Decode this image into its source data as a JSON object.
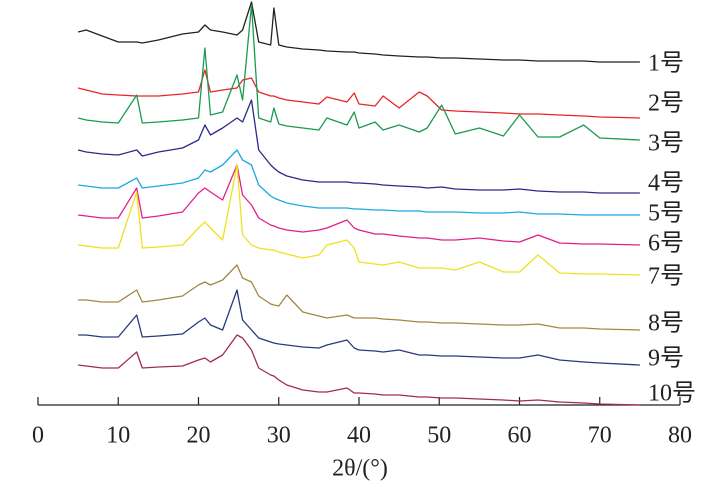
{
  "chart_data": {
    "type": "line",
    "x_label": "2θ/(°)",
    "xlim": [
      0,
      80
    ],
    "xticks": [
      0,
      10,
      20,
      30,
      40,
      50,
      60,
      70,
      80
    ],
    "ylim": [
      0,
      405
    ],
    "x": [
      5,
      6,
      7,
      8,
      10,
      12.3,
      13,
      15,
      18,
      20,
      20.8,
      21.5,
      23,
      24.8,
      25.5,
      26.6,
      27.5,
      29,
      29.4,
      30,
      31,
      33,
      35,
      36,
      38.5,
      39.4,
      40,
      42,
      43,
      45,
      47.5,
      48.5,
      50.3,
      52,
      55,
      58,
      60,
      62.3,
      65,
      68,
      70,
      75
    ],
    "series": [
      {
        "name": "1号",
        "color": "#222222",
        "values": [
          373,
          375,
          372,
          369,
          363,
          363,
          362,
          365,
          371,
          373,
          380,
          375,
          373,
          370,
          375,
          403,
          363,
          360,
          397,
          360,
          358,
          356,
          355,
          354,
          353,
          353,
          352,
          351,
          350,
          349,
          348,
          348,
          347,
          347,
          346,
          345,
          345,
          344,
          344,
          344,
          343,
          343
        ]
      },
      {
        "name": "2号",
        "color": "#e8242a",
        "values": [
          317,
          315,
          313,
          311,
          310,
          309,
          309,
          309,
          311,
          313,
          335,
          313,
          315,
          317,
          325,
          327,
          313,
          309,
          309,
          307,
          305,
          303,
          301,
          308,
          303,
          312,
          301,
          299,
          309,
          297,
          313,
          309,
          295,
          294,
          293,
          292,
          291,
          291,
          290,
          289,
          288,
          287
        ]
      },
      {
        "name": "3号",
        "color": "#1a9a50",
        "values": [
          287,
          285,
          284,
          283,
          282,
          310,
          282,
          283,
          285,
          287,
          357,
          290,
          293,
          330,
          305,
          400,
          287,
          283,
          297,
          281,
          279,
          277,
          275,
          287,
          280,
          293,
          277,
          283,
          275,
          280,
          273,
          277,
          300,
          271,
          277,
          269,
          290,
          268,
          268,
          280,
          267,
          265
        ]
      },
      {
        "name": "4号",
        "color": "#2a2a8a",
        "values": [
          255,
          253,
          252,
          251,
          250,
          255,
          249,
          253,
          257,
          265,
          280,
          270,
          277,
          287,
          283,
          305,
          255,
          240,
          237,
          233,
          229,
          225,
          223,
          223,
          223,
          222,
          222,
          221,
          220,
          219,
          218,
          217,
          218,
          216,
          215,
          215,
          216,
          214,
          213,
          213,
          212,
          212
        ]
      },
      {
        "name": "5号",
        "color": "#1fa8e0",
        "values": [
          220,
          219,
          218,
          217,
          217,
          227,
          217,
          219,
          222,
          227,
          235,
          233,
          240,
          255,
          245,
          240,
          220,
          209,
          207,
          205,
          202,
          199,
          197,
          197,
          197,
          196,
          196,
          195,
          195,
          194,
          194,
          193,
          193,
          193,
          192,
          192,
          193,
          191,
          191,
          190,
          190,
          190
        ]
      },
      {
        "name": "6号",
        "color": "#e0208a",
        "values": [
          190,
          189,
          188,
          187,
          187,
          217,
          187,
          189,
          193,
          212,
          217,
          213,
          205,
          240,
          210,
          200,
          187,
          180,
          179,
          177,
          175,
          173,
          175,
          177,
          185,
          177,
          175,
          171,
          171,
          169,
          167,
          167,
          165,
          165,
          167,
          164,
          163,
          170,
          162,
          161,
          161,
          160
        ]
      },
      {
        "name": "7号",
        "color": "#f0e020",
        "values": [
          160,
          159,
          158,
          157,
          157,
          213,
          157,
          158,
          160,
          177,
          183,
          177,
          165,
          240,
          170,
          160,
          157,
          155,
          155,
          153,
          151,
          147,
          150,
          160,
          165,
          157,
          143,
          141,
          140,
          143,
          137,
          137,
          137,
          135,
          143,
          133,
          133,
          150,
          132,
          131,
          131,
          130
        ]
      },
      {
        "name": "8号",
        "color": "#a08a40",
        "values": [
          105,
          105,
          104,
          103,
          103,
          115,
          103,
          105,
          109,
          120,
          123,
          120,
          125,
          140,
          127,
          123,
          109,
          101,
          100,
          99,
          110,
          93,
          89,
          87,
          90,
          87,
          87,
          87,
          86,
          85,
          83,
          83,
          82,
          82,
          81,
          80,
          80,
          81,
          77,
          77,
          76,
          75
        ]
      },
      {
        "name": "9号",
        "color": "#2a3a7a",
        "values": [
          70,
          70,
          69,
          68,
          68,
          90,
          68,
          69,
          71,
          83,
          87,
          80,
          75,
          115,
          85,
          75,
          67,
          63,
          62,
          61,
          60,
          58,
          57,
          60,
          65,
          57,
          55,
          54,
          53,
          55,
          50,
          50,
          49,
          49,
          48,
          47,
          47,
          50,
          45,
          43,
          42,
          40
        ]
      },
      {
        "name": "10号",
        "color": "#a02a5a",
        "values": [
          40,
          39,
          38,
          37,
          37,
          53,
          37,
          38,
          39,
          45,
          47,
          43,
          50,
          70,
          67,
          55,
          37,
          30,
          29,
          25,
          20,
          15,
          13,
          13,
          17,
          12,
          12,
          11,
          10,
          10,
          8,
          8,
          7,
          7,
          6,
          5,
          4,
          5,
          3,
          2,
          1,
          0
        ]
      }
    ]
  }
}
